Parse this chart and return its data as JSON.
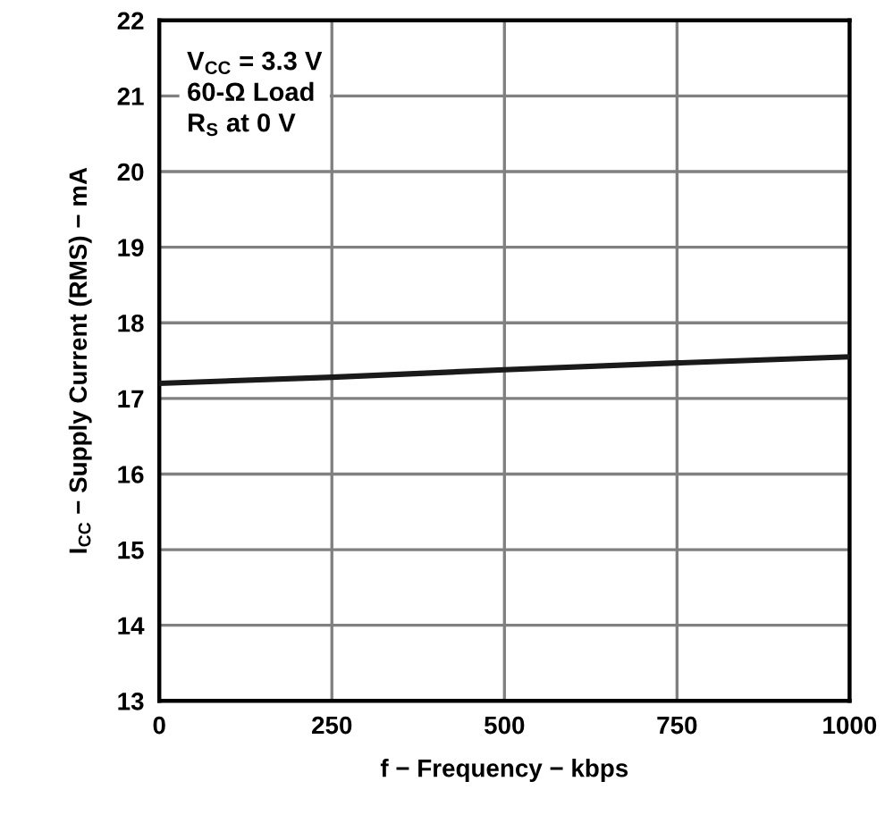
{
  "chart_data": {
    "type": "line",
    "xlabel": "f − Frequency − kbps",
    "ylabel": "I$_{CC}$ − Supply Current (RMS) − mA",
    "x": [
      0,
      250,
      500,
      750,
      1000
    ],
    "series": [
      {
        "color": "#1a1a1a",
        "values": [
          17.2,
          17.28,
          17.38,
          17.47,
          17.55
        ]
      }
    ],
    "xlim": [
      0,
      1000
    ],
    "xticks": [
      0,
      250,
      500,
      750,
      1000
    ],
    "ylim": [
      13,
      22
    ],
    "yticks": [
      13,
      14,
      15,
      16,
      17,
      18,
      19,
      20,
      21,
      22
    ],
    "grid": true,
    "marker": "none",
    "line_style": "solid",
    "legend": false,
    "annotations": [
      "V$_{CC}$ = 3.3 V",
      "60-Ω Load",
      "R$_{S}$ at 0 V"
    ]
  }
}
